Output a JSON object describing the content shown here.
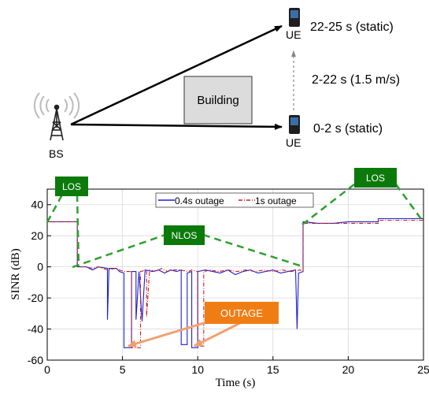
{
  "scenario": {
    "bs_label": "BS",
    "ue_top_label": "UE",
    "ue_bottom_label": "UE",
    "building_label": "Building",
    "phase_top": "22-25 s (static)",
    "phase_middle": "2-22 s (1.5 m/s)",
    "phase_bottom": "0-2 s (static)"
  },
  "chart_data": {
    "type": "line",
    "title": "",
    "xlabel": "Time (s)",
    "ylabel": "SINR (dB)",
    "xlim": [
      0,
      25
    ],
    "ylim": [
      -60,
      50
    ],
    "xticks": [
      0,
      5,
      10,
      15,
      20,
      25
    ],
    "yticks": [
      -60,
      -40,
      -20,
      0,
      20,
      40
    ],
    "grid": true,
    "legend_position": "top-center",
    "annotations": {
      "los_left": "LOS",
      "los_right": "LOS",
      "nlos": "NLOS",
      "outage": "OUTAGE"
    },
    "series": [
      {
        "name": "0.4s outage",
        "color": "#1f1fd1",
        "style": "solid",
        "points": [
          [
            0,
            29
          ],
          [
            2,
            29
          ],
          [
            2,
            0
          ],
          [
            2.6,
            0
          ],
          [
            3.0,
            -2
          ],
          [
            3.4,
            0
          ],
          [
            4.0,
            -1
          ],
          [
            4.0,
            -34
          ],
          [
            4.1,
            -1
          ],
          [
            4.6,
            -1
          ],
          [
            4.8,
            -3
          ],
          [
            5.1,
            -4
          ],
          [
            5.1,
            -52
          ],
          [
            5.6,
            -52
          ],
          [
            5.6,
            -3
          ],
          [
            5.9,
            -3
          ],
          [
            5.9,
            -34
          ],
          [
            6.1,
            -3
          ],
          [
            6.3,
            -35
          ],
          [
            6.5,
            -2
          ],
          [
            7.0,
            -3
          ],
          [
            7.4,
            -2
          ],
          [
            7.8,
            -4
          ],
          [
            8.2,
            -2
          ],
          [
            8.6,
            -3
          ],
          [
            8.9,
            -2
          ],
          [
            8.9,
            -50
          ],
          [
            9.3,
            -50
          ],
          [
            9.3,
            -4
          ],
          [
            9.6,
            -3
          ],
          [
            9.6,
            -52
          ],
          [
            10.0,
            -52
          ],
          [
            10.0,
            -3
          ],
          [
            10.5,
            -2
          ],
          [
            11.0,
            -3
          ],
          [
            11.5,
            -4
          ],
          [
            12.0,
            -2
          ],
          [
            12.5,
            -5
          ],
          [
            13.0,
            -3
          ],
          [
            13.5,
            -2
          ],
          [
            14.0,
            -4
          ],
          [
            14.5,
            -3
          ],
          [
            15.0,
            -2
          ],
          [
            15.5,
            -4
          ],
          [
            16.0,
            -3
          ],
          [
            16.5,
            -2
          ],
          [
            16.6,
            -40
          ],
          [
            16.7,
            -4
          ],
          [
            17.0,
            -3
          ],
          [
            17.0,
            29
          ],
          [
            18.0,
            28
          ],
          [
            19.0,
            28
          ],
          [
            20.0,
            29
          ],
          [
            22.0,
            29
          ],
          [
            22.0,
            31
          ],
          [
            25.0,
            31
          ]
        ]
      },
      {
        "name": "1s outage",
        "color": "#c81e1e",
        "style": "dashdot",
        "points": [
          [
            0,
            29
          ],
          [
            2,
            29
          ],
          [
            2,
            0
          ],
          [
            2.6,
            0
          ],
          [
            3.0,
            -1
          ],
          [
            3.4,
            0
          ],
          [
            4.0,
            -2
          ],
          [
            4.5,
            -1
          ],
          [
            4.8,
            -2
          ],
          [
            5.1,
            -3
          ],
          [
            5.6,
            -3
          ],
          [
            5.6,
            -52
          ],
          [
            6.2,
            -52
          ],
          [
            6.2,
            -3
          ],
          [
            6.6,
            -2
          ],
          [
            6.6,
            -32
          ],
          [
            6.8,
            -2
          ],
          [
            7.2,
            -3
          ],
          [
            7.6,
            -1
          ],
          [
            8.0,
            -3
          ],
          [
            8.4,
            -2
          ],
          [
            8.8,
            -2
          ],
          [
            9.4,
            -3
          ],
          [
            9.6,
            -2
          ],
          [
            10.0,
            -3
          ],
          [
            10.0,
            -51
          ],
          [
            10.4,
            -51
          ],
          [
            10.4,
            -3
          ],
          [
            10.8,
            -2
          ],
          [
            11.4,
            -3
          ],
          [
            12.0,
            -2
          ],
          [
            12.6,
            -3
          ],
          [
            13.2,
            -2
          ],
          [
            13.8,
            -3
          ],
          [
            14.4,
            -2
          ],
          [
            15.0,
            -3
          ],
          [
            15.6,
            -2
          ],
          [
            16.2,
            -3
          ],
          [
            16.8,
            -2
          ],
          [
            17.0,
            -3
          ],
          [
            17.0,
            28
          ],
          [
            18.0,
            28
          ],
          [
            20.0,
            28
          ],
          [
            22.0,
            28
          ],
          [
            22.0,
            30
          ],
          [
            25.0,
            30
          ]
        ]
      }
    ]
  }
}
